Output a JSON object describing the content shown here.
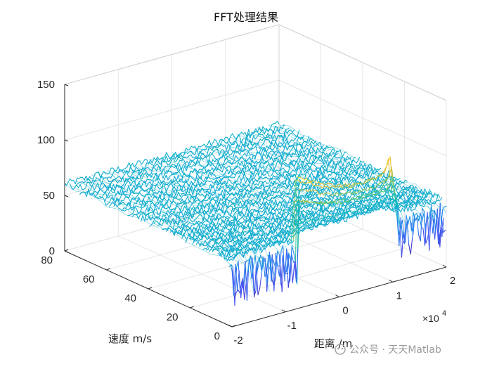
{
  "chart_data": {
    "type": "surface-3d",
    "title": "FFT处理结果",
    "xlabel": "距离 /m",
    "ylabel": "速度 m/s",
    "zlabel": "",
    "x_exponent_label": "×10",
    "x_exponent_power": "4",
    "xlim": [
      -2,
      2
    ],
    "ylim": [
      0,
      80
    ],
    "zlim": [
      0,
      150
    ],
    "x_ticks": [
      "-2",
      "-1",
      "0",
      "1",
      "2"
    ],
    "y_ticks": [
      "0",
      "20",
      "40",
      "60",
      "80"
    ],
    "z_ticks": [
      "0",
      "50",
      "100",
      "150"
    ],
    "grid": true,
    "colormap": "parula",
    "floor_level_approx": 60,
    "noise_min_approx": 20,
    "series": [
      {
        "feature": "peak ridge (near velocity 0)",
        "x": [
          -0.74,
          -0.5,
          -0.25,
          0,
          0.25,
          0.5,
          0.75,
          0.9,
          1.0,
          1.02,
          1.1
        ],
        "z": [
          118,
          112,
          104,
          100,
          97,
          96,
          97,
          100,
          112,
          98,
          70
        ]
      }
    ]
  },
  "watermark": "公众号 · 天天Matlab"
}
